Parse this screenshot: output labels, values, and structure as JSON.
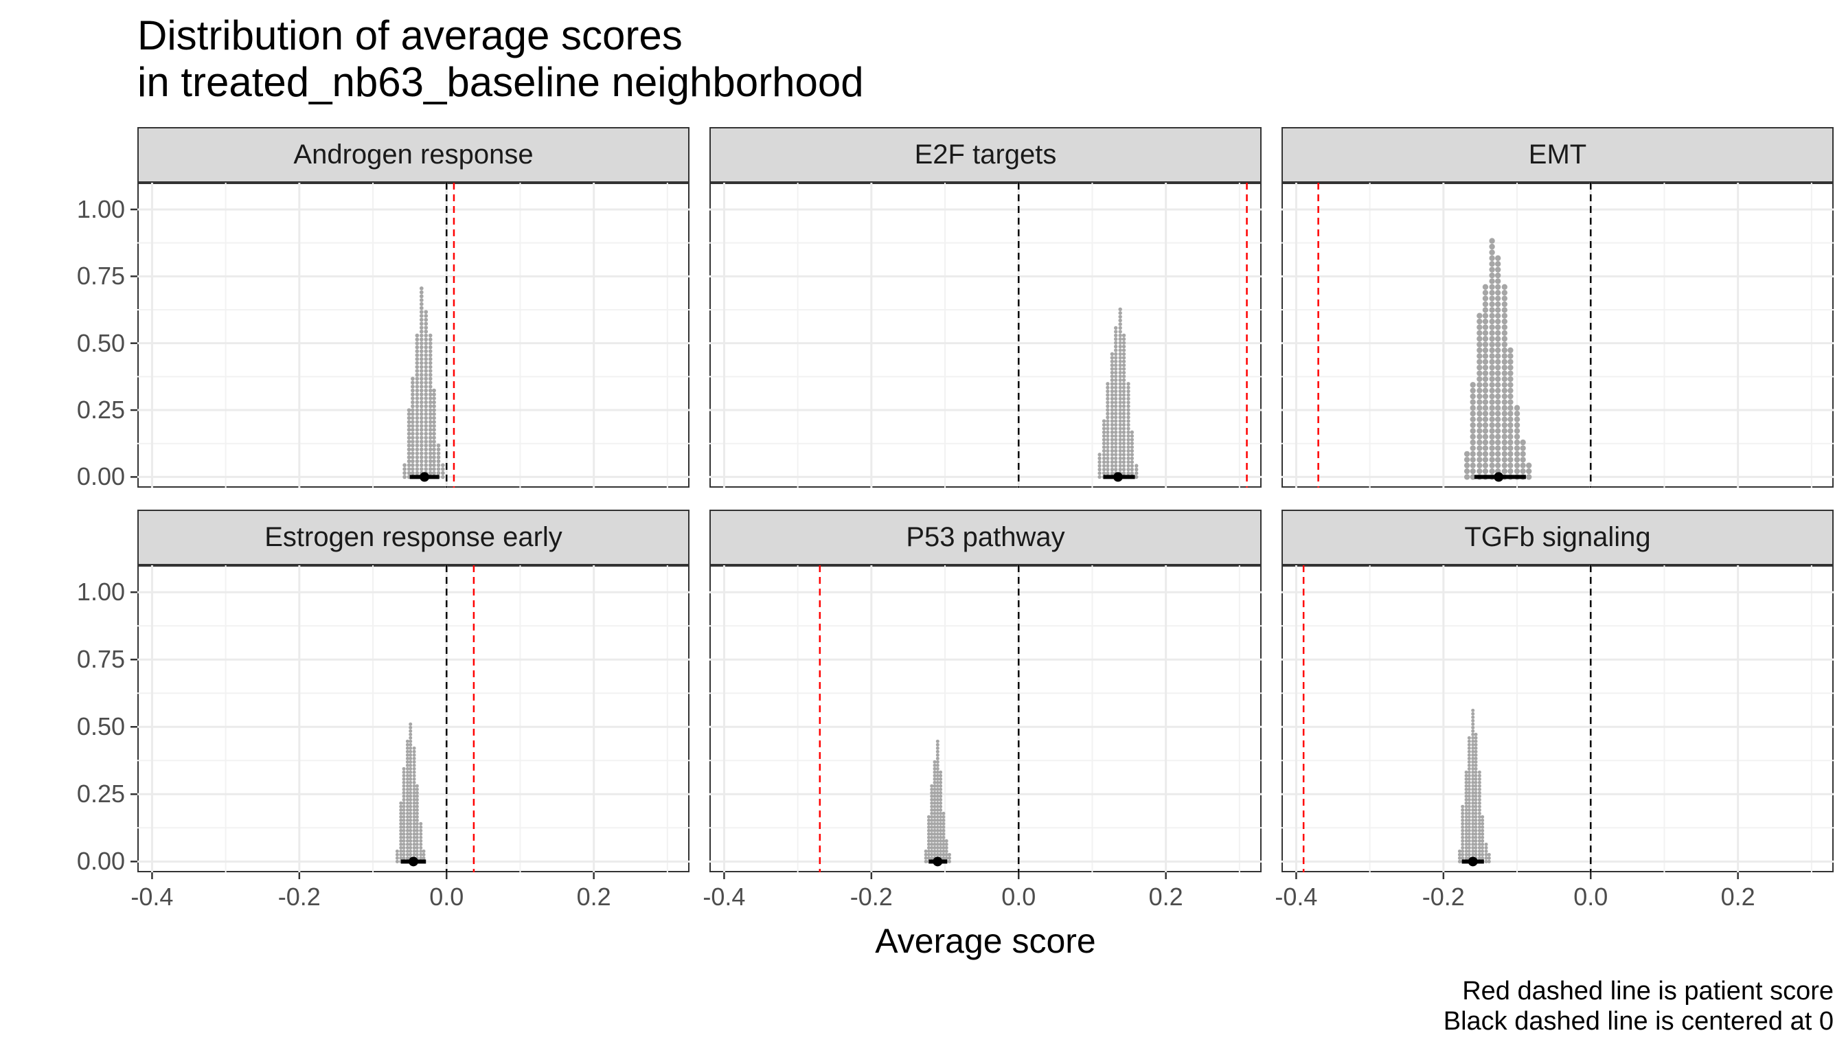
{
  "title_line1": "Distribution of average scores",
  "title_line2": "in treated_nb63_baseline neighborhood",
  "caption_line1": "Red dashed line is patient score",
  "caption_line2": "Black dashed line is centered at 0",
  "colors": {
    "dots": "#a6a6a6",
    "summary": "#000000",
    "patient_line": "#ff0000",
    "zero_line": "#000000",
    "strip": "#d9d9d9"
  },
  "chart_data": {
    "type": "dotplot",
    "xlabel": "Average score",
    "ylabel": "",
    "xlim": [
      -0.42,
      0.33
    ],
    "ylim": [
      -0.04,
      1.1
    ],
    "xticks": [
      -0.4,
      -0.2,
      0.0,
      0.2
    ],
    "xtick_labels": [
      "-0.4",
      "-0.2",
      "0.0",
      "0.2"
    ],
    "yticks": [
      0.0,
      0.25,
      0.5,
      0.75,
      1.0
    ],
    "ytick_labels": [
      "0.00",
      "0.25",
      "0.50",
      "0.75",
      "1.00"
    ],
    "grid": true,
    "facets": [
      {
        "name": "Androgen response",
        "patient_score": 0.01,
        "zero_line": 0,
        "summary": {
          "median": -0.03,
          "interval": [
            -0.05,
            -0.01
          ]
        },
        "bin_width": 0.0058,
        "bins": [
          {
            "x": -0.057,
            "y": 0.04
          },
          {
            "x": -0.051,
            "y": 0.25
          },
          {
            "x": -0.046,
            "y": 0.37
          },
          {
            "x": -0.04,
            "y": 0.53
          },
          {
            "x": -0.034,
            "y": 0.7
          },
          {
            "x": -0.028,
            "y": 0.62
          },
          {
            "x": -0.022,
            "y": 0.53
          },
          {
            "x": -0.017,
            "y": 0.33
          },
          {
            "x": -0.011,
            "y": 0.12
          },
          {
            "x": -0.005,
            "y": 0.04
          }
        ]
      },
      {
        "name": "E2F targets",
        "patient_score": 0.31,
        "zero_line": 0,
        "summary": {
          "median": 0.135,
          "interval": [
            0.115,
            0.158
          ]
        },
        "bin_width": 0.0055,
        "bins": [
          {
            "x": 0.11,
            "y": 0.08
          },
          {
            "x": 0.116,
            "y": 0.21
          },
          {
            "x": 0.121,
            "y": 0.35
          },
          {
            "x": 0.127,
            "y": 0.46
          },
          {
            "x": 0.132,
            "y": 0.56
          },
          {
            "x": 0.138,
            "y": 0.62
          },
          {
            "x": 0.143,
            "y": 0.53
          },
          {
            "x": 0.149,
            "y": 0.35
          },
          {
            "x": 0.154,
            "y": 0.17
          },
          {
            "x": 0.16,
            "y": 0.04
          }
        ]
      },
      {
        "name": "EMT",
        "patient_score": -0.37,
        "zero_line": 0,
        "summary": {
          "median": -0.125,
          "interval": [
            -0.158,
            -0.088
          ]
        },
        "bin_width": 0.0085,
        "bins": [
          {
            "x": -0.168,
            "y": 0.08
          },
          {
            "x": -0.16,
            "y": 0.34
          },
          {
            "x": -0.151,
            "y": 0.6
          },
          {
            "x": -0.143,
            "y": 0.72
          },
          {
            "x": -0.134,
            "y": 0.88
          },
          {
            "x": -0.126,
            "y": 0.81
          },
          {
            "x": -0.117,
            "y": 0.72
          },
          {
            "x": -0.109,
            "y": 0.47
          },
          {
            "x": -0.1,
            "y": 0.25
          },
          {
            "x": -0.092,
            "y": 0.12
          },
          {
            "x": -0.084,
            "y": 0.04
          }
        ]
      },
      {
        "name": "Estrogen response early",
        "patient_score": 0.037,
        "zero_line": 0,
        "summary": {
          "median": -0.045,
          "interval": [
            -0.062,
            -0.028
          ]
        },
        "bin_width": 0.0045,
        "bins": [
          {
            "x": -0.067,
            "y": 0.04
          },
          {
            "x": -0.062,
            "y": 0.22
          },
          {
            "x": -0.058,
            "y": 0.35
          },
          {
            "x": -0.053,
            "y": 0.44
          },
          {
            "x": -0.049,
            "y": 0.51
          },
          {
            "x": -0.044,
            "y": 0.42
          },
          {
            "x": -0.04,
            "y": 0.28
          },
          {
            "x": -0.035,
            "y": 0.14
          },
          {
            "x": -0.031,
            "y": 0.04
          }
        ]
      },
      {
        "name": "P53 pathway",
        "patient_score": -0.27,
        "zero_line": 0,
        "summary": {
          "median": -0.11,
          "interval": [
            -0.122,
            -0.097
          ]
        },
        "bin_width": 0.004,
        "bins": [
          {
            "x": -0.126,
            "y": 0.04
          },
          {
            "x": -0.122,
            "y": 0.17
          },
          {
            "x": -0.118,
            "y": 0.28
          },
          {
            "x": -0.114,
            "y": 0.37
          },
          {
            "x": -0.11,
            "y": 0.44
          },
          {
            "x": -0.106,
            "y": 0.33
          },
          {
            "x": -0.102,
            "y": 0.18
          },
          {
            "x": -0.098,
            "y": 0.08
          },
          {
            "x": -0.094,
            "y": 0.03
          }
        ]
      },
      {
        "name": "TGFb signaling",
        "patient_score": -0.39,
        "zero_line": 0,
        "summary": {
          "median": -0.16,
          "interval": [
            -0.175,
            -0.145
          ]
        },
        "bin_width": 0.0045,
        "bins": [
          {
            "x": -0.178,
            "y": 0.04
          },
          {
            "x": -0.174,
            "y": 0.21
          },
          {
            "x": -0.169,
            "y": 0.33
          },
          {
            "x": -0.165,
            "y": 0.46
          },
          {
            "x": -0.16,
            "y": 0.56
          },
          {
            "x": -0.156,
            "y": 0.47
          },
          {
            "x": -0.151,
            "y": 0.33
          },
          {
            "x": -0.147,
            "y": 0.17
          },
          {
            "x": -0.142,
            "y": 0.06
          },
          {
            "x": -0.138,
            "y": 0.02
          }
        ]
      }
    ]
  }
}
